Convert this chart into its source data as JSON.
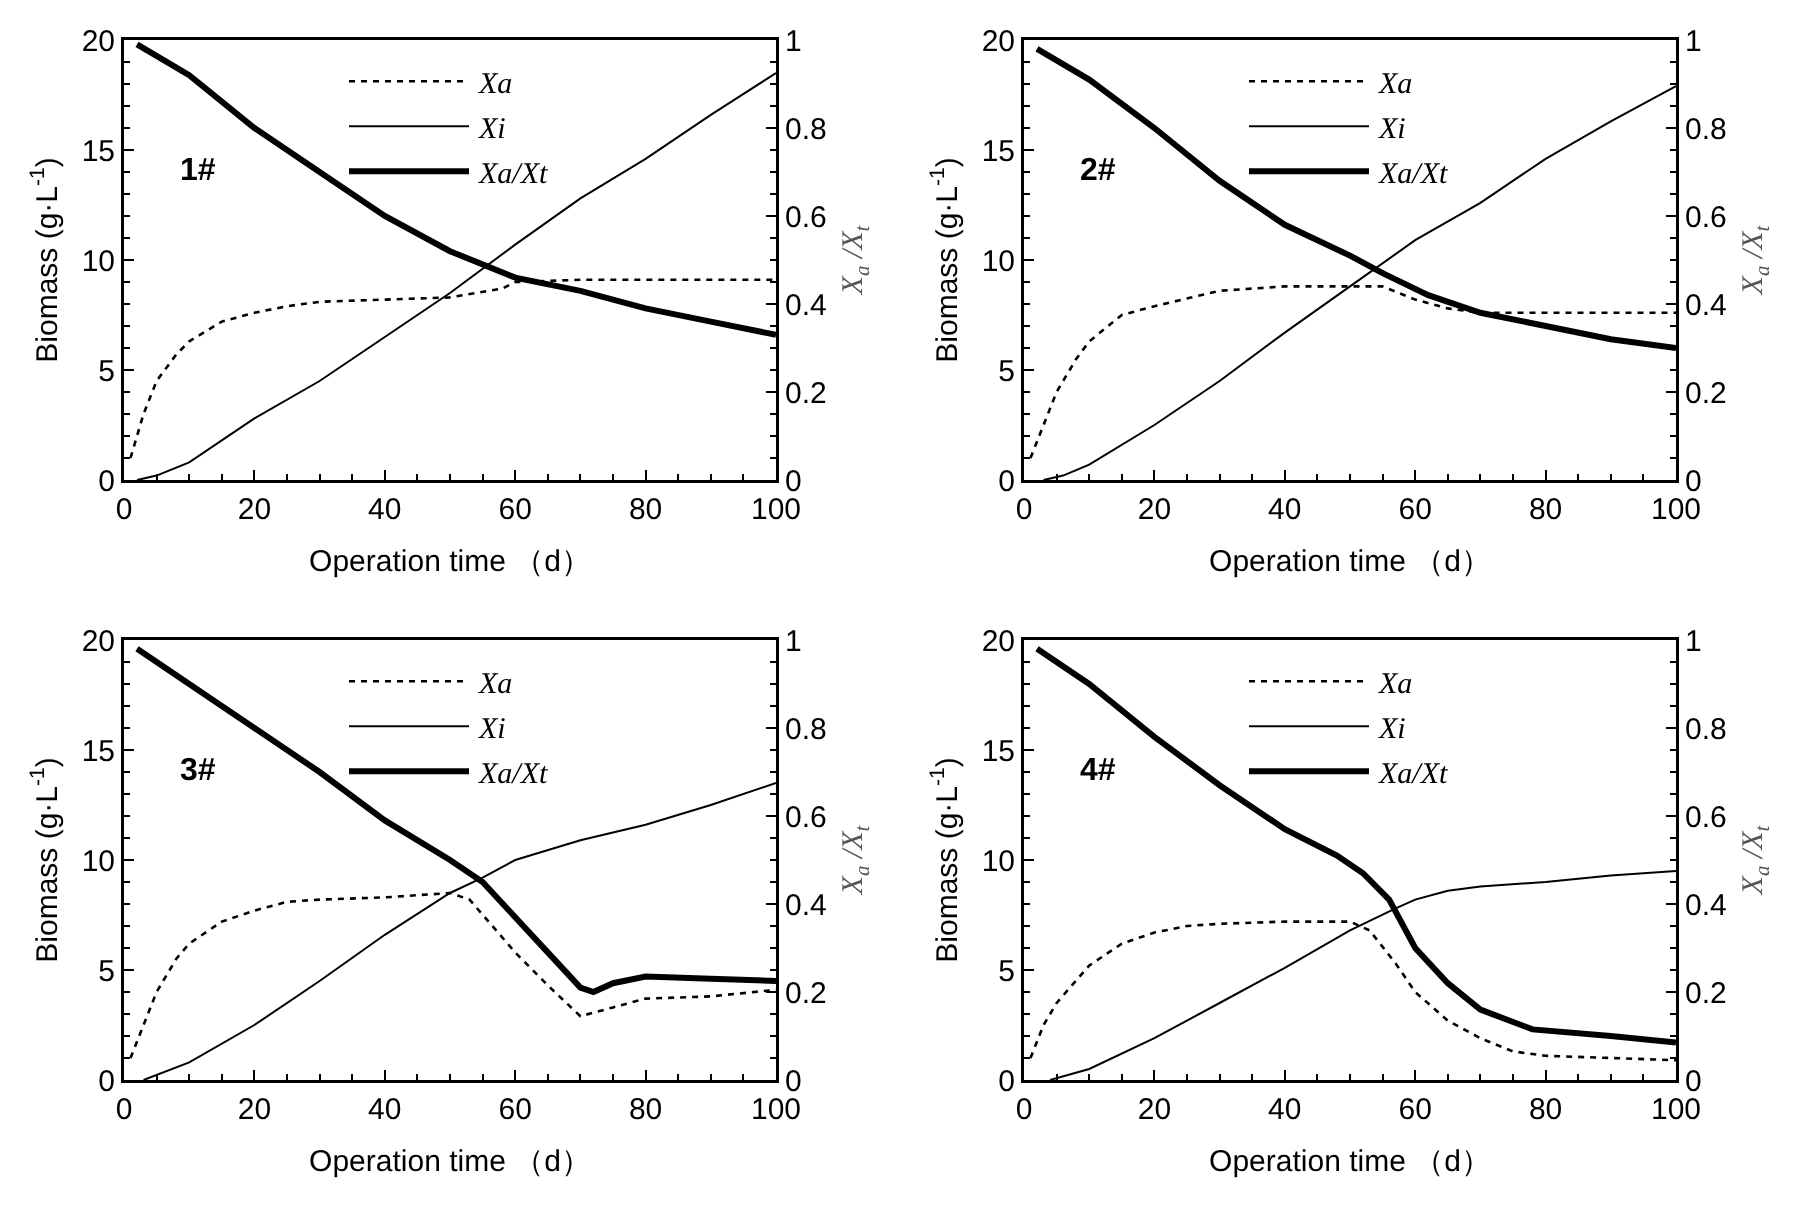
{
  "chart_data": [
    {
      "type": "line",
      "annotations": [
        "1#"
      ],
      "xlabel": "Operation time （d）",
      "ylabel": "Biomass (g·L$^{-1}$)",
      "y2label": "X$_{a}$ /X$_{t}$",
      "xlim": [
        0,
        100
      ],
      "xticks": [
        0,
        20,
        40,
        60,
        80,
        100
      ],
      "ylim": [
        0,
        20
      ],
      "yticks": [
        0,
        5,
        10,
        15,
        20
      ],
      "y2lim": [
        0,
        1
      ],
      "y2ticks": [
        0,
        0.2,
        0.4,
        0.6,
        0.8,
        1
      ],
      "grid": false,
      "legend": "top",
      "series": [
        {
          "name": "Xa",
          "color": "#000000",
          "line_style": "dotted",
          "x": [
            1,
            3,
            5,
            8,
            10,
            15,
            20,
            25,
            30,
            40,
            50,
            58,
            60,
            70,
            80,
            100
          ],
          "values": [
            1,
            3,
            4.5,
            5.7,
            6.3,
            7.2,
            7.6,
            7.9,
            8.1,
            8.2,
            8.3,
            8.7,
            9,
            9.1,
            9.1,
            9.1
          ]
        },
        {
          "name": "Xi",
          "color": "#000000",
          "line_style": "solid",
          "x": [
            2,
            5,
            10,
            20,
            30,
            40,
            50,
            60,
            70,
            80,
            90,
            100
          ],
          "values": [
            0,
            0.2,
            0.8,
            2.8,
            4.5,
            6.5,
            8.5,
            10.7,
            12.8,
            14.6,
            16.6,
            18.5
          ]
        },
        {
          "name": "Xa/Xt",
          "color": "#000000",
          "line_style": "solid",
          "axis": "y2",
          "x": [
            2,
            10,
            20,
            30,
            40,
            50,
            60,
            70,
            80,
            90,
            100
          ],
          "values": [
            0.99,
            0.92,
            0.8,
            0.7,
            0.6,
            0.52,
            0.46,
            0.43,
            0.39,
            0.36,
            0.33
          ]
        }
      ]
    },
    {
      "type": "line",
      "annotations": [
        "2#"
      ],
      "xlabel": "Operation time （d）",
      "ylabel": "Biomass (g·L$^{-1}$)",
      "y2label": "X$_{a}$ /X$_{t}$",
      "xlim": [
        0,
        100
      ],
      "xticks": [
        0,
        20,
        40,
        60,
        80,
        100
      ],
      "ylim": [
        0,
        20
      ],
      "yticks": [
        0,
        5,
        10,
        15,
        20
      ],
      "y2lim": [
        0,
        1
      ],
      "y2ticks": [
        0,
        0.2,
        0.4,
        0.6,
        0.8,
        1
      ],
      "grid": false,
      "legend": "top",
      "series": [
        {
          "name": "Xa",
          "color": "#000000",
          "line_style": "dotted",
          "x": [
            1,
            3,
            5,
            8,
            10,
            15,
            20,
            30,
            40,
            50,
            55,
            60,
            65,
            70,
            100
          ],
          "values": [
            1,
            2.5,
            4,
            5.5,
            6.3,
            7.5,
            7.9,
            8.6,
            8.8,
            8.8,
            8.8,
            8.2,
            7.8,
            7.6,
            7.6
          ]
        },
        {
          "name": "Xi",
          "color": "#000000",
          "line_style": "solid",
          "x": [
            3,
            6,
            10,
            20,
            30,
            40,
            50,
            60,
            70,
            80,
            90,
            100
          ],
          "values": [
            0,
            0.2,
            0.7,
            2.5,
            4.5,
            6.7,
            8.8,
            10.9,
            12.6,
            14.6,
            16.3,
            17.9
          ]
        },
        {
          "name": "Xa/Xt",
          "color": "#000000",
          "line_style": "solid",
          "axis": "y2",
          "x": [
            2,
            10,
            20,
            30,
            40,
            50,
            55,
            62,
            70,
            80,
            90,
            100
          ],
          "values": [
            0.98,
            0.91,
            0.8,
            0.68,
            0.58,
            0.51,
            0.47,
            0.42,
            0.38,
            0.35,
            0.32,
            0.3
          ]
        }
      ]
    },
    {
      "type": "line",
      "annotations": [
        "3#"
      ],
      "xlabel": "Operation time （d）",
      "ylabel": "Biomass (g·L$^{-1}$)",
      "y2label": "X$_{a}$ /X$_{t}$",
      "xlim": [
        0,
        100
      ],
      "xticks": [
        0,
        20,
        40,
        60,
        80,
        100
      ],
      "ylim": [
        0,
        20
      ],
      "yticks": [
        0,
        5,
        10,
        15,
        20
      ],
      "y2lim": [
        0,
        1
      ],
      "y2ticks": [
        0,
        0.2,
        0.4,
        0.6,
        0.8,
        1
      ],
      "grid": false,
      "legend": "top",
      "series": [
        {
          "name": "Xa",
          "color": "#000000",
          "line_style": "dotted",
          "x": [
            1,
            3,
            5,
            8,
            10,
            15,
            20,
            25,
            30,
            40,
            50,
            53,
            60,
            65,
            70,
            75,
            80,
            90,
            100
          ],
          "values": [
            1,
            2.5,
            4,
            5.5,
            6.2,
            7.2,
            7.7,
            8.1,
            8.2,
            8.3,
            8.5,
            8.2,
            5.8,
            4.3,
            2.9,
            3.3,
            3.7,
            3.8,
            4.1
          ]
        },
        {
          "name": "Xi",
          "color": "#000000",
          "line_style": "solid",
          "x": [
            3,
            10,
            20,
            30,
            40,
            50,
            55,
            60,
            70,
            80,
            90,
            100
          ],
          "values": [
            0,
            0.8,
            2.5,
            4.5,
            6.6,
            8.5,
            9.2,
            10,
            10.9,
            11.6,
            12.5,
            13.5
          ]
        },
        {
          "name": "Xa/Xt",
          "color": "#000000",
          "line_style": "solid",
          "axis": "y2",
          "x": [
            2,
            10,
            20,
            30,
            40,
            50,
            55,
            60,
            65,
            70,
            72,
            75,
            80,
            90,
            100
          ],
          "values": [
            0.98,
            0.9,
            0.8,
            0.7,
            0.59,
            0.5,
            0.45,
            0.37,
            0.29,
            0.21,
            0.2,
            0.22,
            0.235,
            0.23,
            0.225
          ]
        }
      ]
    },
    {
      "type": "line",
      "annotations": [
        "4#"
      ],
      "xlabel": "Operation time （d）",
      "ylabel": "Biomass (g·L$^{-1}$)",
      "y2label": "X$_{a}$ /X$_{t}$",
      "xlim": [
        0,
        100
      ],
      "xticks": [
        0,
        20,
        40,
        60,
        80,
        100
      ],
      "ylim": [
        0,
        20
      ],
      "yticks": [
        0,
        5,
        10,
        15,
        20
      ],
      "y2lim": [
        0,
        1
      ],
      "y2ticks": [
        0,
        0.2,
        0.4,
        0.6,
        0.8,
        1
      ],
      "grid": false,
      "legend": "top",
      "series": [
        {
          "name": "Xa",
          "color": "#000000",
          "line_style": "dotted",
          "x": [
            1,
            3,
            5,
            10,
            15,
            20,
            25,
            30,
            40,
            50,
            53,
            57,
            60,
            65,
            70,
            75,
            80,
            90,
            100
          ],
          "values": [
            1,
            2.5,
            3.5,
            5.2,
            6.2,
            6.7,
            7,
            7.1,
            7.2,
            7.2,
            6.8,
            5.3,
            4,
            2.7,
            1.9,
            1.3,
            1.1,
            1,
            0.9
          ]
        },
        {
          "name": "Xi",
          "color": "#000000",
          "line_style": "solid",
          "x": [
            4,
            10,
            20,
            30,
            40,
            50,
            57,
            60,
            65,
            70,
            80,
            90,
            100
          ],
          "values": [
            0,
            0.5,
            1.9,
            3.5,
            5.1,
            6.8,
            7.8,
            8.2,
            8.6,
            8.8,
            9,
            9.3,
            9.5
          ]
        },
        {
          "name": "Xa/Xt",
          "color": "#000000",
          "line_style": "solid",
          "axis": "y2",
          "x": [
            2,
            10,
            20,
            30,
            40,
            48,
            52,
            56,
            60,
            65,
            70,
            78,
            90,
            100
          ],
          "values": [
            0.98,
            0.9,
            0.78,
            0.67,
            0.57,
            0.51,
            0.47,
            0.41,
            0.3,
            0.22,
            0.16,
            0.115,
            0.1,
            0.085
          ]
        }
      ]
    }
  ]
}
